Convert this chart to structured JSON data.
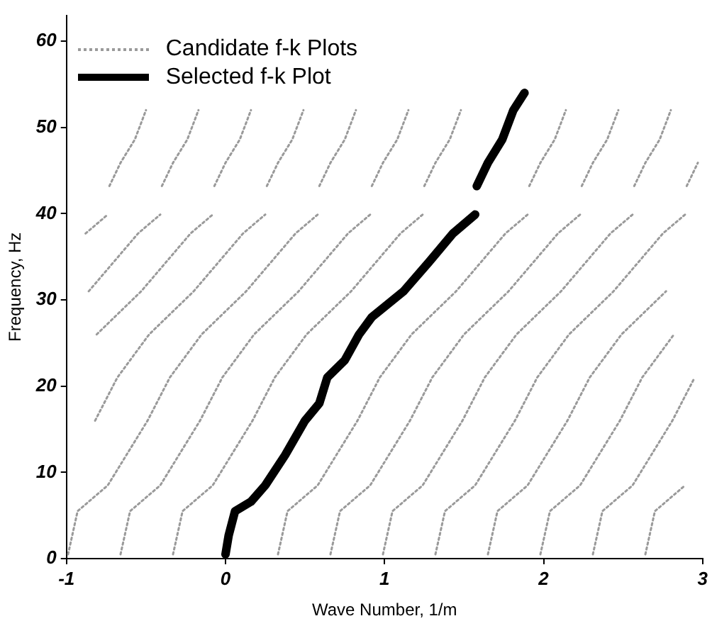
{
  "chart_data": {
    "type": "line",
    "xlabel": "Wave Number, 1/m",
    "ylabel": "Frequency, Hz",
    "xlim": [
      -1,
      3
    ],
    "ylim": [
      0,
      63
    ],
    "xticks": [
      -1,
      0,
      1,
      2,
      3
    ],
    "yticks": [
      0,
      10,
      20,
      30,
      40,
      50,
      60
    ],
    "grid": false,
    "legend": "top left",
    "marker": "none",
    "series": [
      {
        "name": "Candidate f-k Plots",
        "color": "#9a9a9a",
        "line_style": "dotted",
        "x": [
          -0.88,
          -0.74,
          null,
          -0.86,
          -0.55,
          -0.41,
          null,
          -0.81,
          -0.53,
          -0.22,
          -0.08,
          null,
          -0.82,
          -0.68,
          -0.48,
          -0.2,
          0.11,
          0.25,
          null,
          -0.99,
          -0.93,
          -0.74,
          -0.49,
          -0.35,
          -0.15,
          0.13,
          0.44,
          0.58,
          null,
          -0.66,
          -0.6,
          -0.41,
          -0.16,
          -0.02,
          0.18,
          0.46,
          0.77,
          0.91,
          null,
          -0.33,
          -0.27,
          -0.08,
          0.17,
          0.31,
          0.51,
          0.79,
          1.1,
          1.24,
          null,
          0.33,
          0.39,
          0.58,
          0.83,
          0.97,
          1.17,
          1.45,
          1.76,
          1.9,
          null,
          0.66,
          0.72,
          0.91,
          1.16,
          1.3,
          1.5,
          1.78,
          2.09,
          2.23,
          null,
          0.99,
          1.05,
          1.24,
          1.49,
          1.63,
          1.83,
          2.11,
          2.42,
          2.56,
          null,
          1.32,
          1.38,
          1.57,
          1.82,
          1.96,
          2.16,
          2.44,
          2.75,
          2.89,
          null,
          1.65,
          1.71,
          1.9,
          2.15,
          2.29,
          2.49,
          2.77,
          null,
          1.98,
          2.04,
          2.23,
          2.48,
          2.62,
          2.82,
          null,
          2.31,
          2.37,
          2.56,
          2.81,
          2.95,
          null,
          2.64,
          2.7,
          2.89,
          null,
          -0.73,
          -0.66,
          -0.57,
          -0.5,
          null,
          -0.4,
          -0.33,
          -0.24,
          -0.17,
          null,
          -0.07,
          0,
          0.09,
          0.16,
          null,
          0.26,
          0.33,
          0.42,
          0.49,
          null,
          0.59,
          0.66,
          0.75,
          0.82,
          null,
          0.92,
          0.99,
          1.08,
          1.15,
          null,
          1.25,
          1.32,
          1.41,
          1.48,
          null,
          1.91,
          1.98,
          2.07,
          2.14,
          null,
          2.24,
          2.31,
          2.4,
          2.47,
          null,
          2.57,
          2.64,
          2.73,
          2.8,
          null,
          2.9,
          2.97
        ],
        "values": [
          37.7,
          39.9,
          null,
          31,
          37.7,
          39.9,
          null,
          26,
          31,
          37.7,
          39.9,
          null,
          16,
          21,
          26,
          31,
          37.7,
          39.9,
          null,
          0.5,
          5.5,
          8.5,
          16,
          21,
          26,
          31,
          37.7,
          39.9,
          null,
          0.5,
          5.5,
          8.5,
          16,
          21,
          26,
          31,
          37.7,
          39.9,
          null,
          0.5,
          5.5,
          8.5,
          16,
          21,
          26,
          31,
          37.7,
          39.9,
          null,
          0.5,
          5.5,
          8.5,
          16,
          21,
          26,
          31,
          37.7,
          39.9,
          null,
          0.5,
          5.5,
          8.5,
          16,
          21,
          26,
          31,
          37.7,
          39.9,
          null,
          0.5,
          5.5,
          8.5,
          16,
          21,
          26,
          31,
          37.7,
          39.9,
          null,
          0.5,
          5.5,
          8.5,
          16,
          21,
          26,
          31,
          37.7,
          39.9,
          null,
          0.5,
          5.5,
          8.5,
          16,
          21,
          26,
          31,
          null,
          0.5,
          5.5,
          8.5,
          16,
          21,
          26,
          null,
          0.5,
          5.5,
          8.5,
          16,
          21,
          null,
          0.5,
          5.5,
          8.5,
          null,
          43.2,
          45.9,
          48.6,
          52,
          null,
          43.2,
          45.9,
          48.6,
          52,
          null,
          43.2,
          45.9,
          48.6,
          52,
          null,
          43.2,
          45.9,
          48.6,
          52,
          null,
          43.2,
          45.9,
          48.6,
          52,
          null,
          43.2,
          45.9,
          48.6,
          52,
          null,
          43.2,
          45.9,
          48.6,
          52,
          null,
          43.2,
          45.9,
          48.6,
          52,
          null,
          43.2,
          45.9,
          48.6,
          52,
          null,
          43.2,
          45.9,
          48.6,
          52,
          null,
          43.2,
          45.9
        ]
      },
      {
        "name": "Selected f-k Plot",
        "color": "#000000",
        "line_style": "solid",
        "x": [
          0,
          0.02,
          0.06,
          0.16,
          0.25,
          0.375,
          0.5,
          0.59,
          0.64,
          0.75,
          0.84,
          0.92,
          1.12,
          1.28,
          1.43,
          1.57,
          null,
          1.58,
          1.65,
          1.74,
          1.81,
          1.88
        ],
        "values": [
          0.5,
          2.7,
          5.5,
          6.6,
          8.5,
          12,
          16,
          18,
          21,
          23,
          26,
          28,
          31,
          34.4,
          37.7,
          39.9,
          null,
          43.2,
          45.9,
          48.6,
          52,
          54
        ]
      }
    ]
  }
}
